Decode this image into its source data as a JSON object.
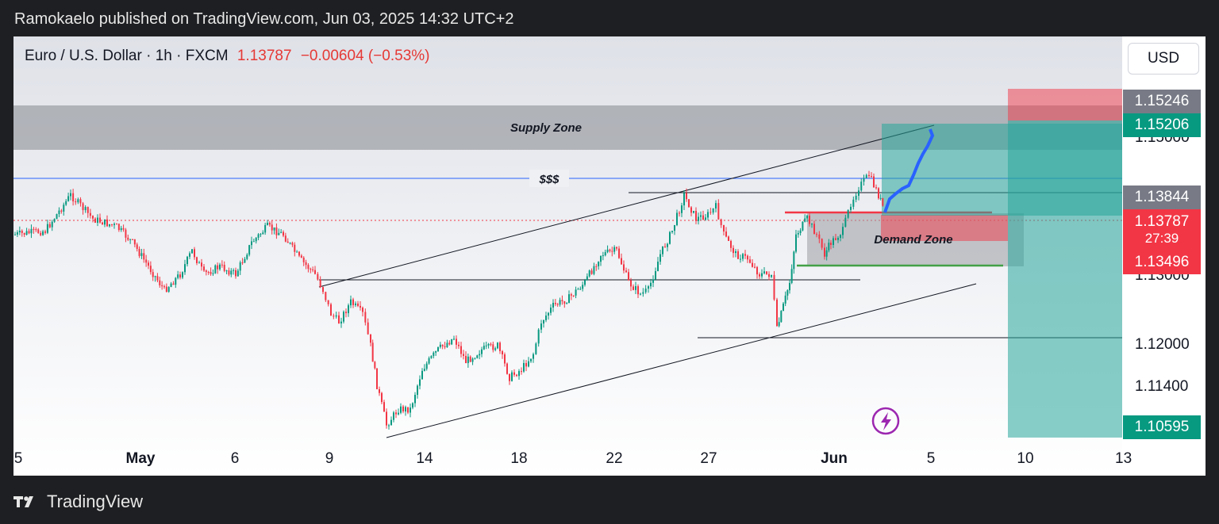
{
  "header": {
    "publish_line": "Ramokaelo published on TradingView.com, Jun 03, 2025 14:32 UTC+2"
  },
  "legend": {
    "symbol": "Euro / U.S. Dollar · 1h · FXCM",
    "price": "1.13787",
    "change": "−0.00604 (−0.53%)"
  },
  "currency_button": "USD",
  "annotations": {
    "supply_zone": "Supply Zone",
    "demand_zone": "Demand Zone",
    "liquidity": "$$$"
  },
  "price_axis": {
    "ticks": [
      "1.15000",
      "1.13000",
      "1.12000",
      "1.11400"
    ],
    "tags": [
      {
        "label": "1.15246",
        "color": "#787b86"
      },
      {
        "label": "1.15206",
        "color": "#089981"
      },
      {
        "label": "1.13844",
        "color": "#787b86"
      },
      {
        "label": "1.13787",
        "color": "#f23645"
      },
      {
        "label": "27:39",
        "color": "#f23645"
      },
      {
        "label": "1.13496",
        "color": "#f23645"
      },
      {
        "label": "1.10595",
        "color": "#089981"
      }
    ]
  },
  "time_axis": {
    "labels": [
      "5",
      "May",
      "6",
      "9",
      "14",
      "18",
      "22",
      "27",
      "Jun",
      "5",
      "10",
      "13"
    ],
    "bold": [
      "May",
      "Jun"
    ]
  },
  "footer": {
    "brand": "TradingView"
  },
  "colors": {
    "up": "#089981",
    "down": "#f23645",
    "projection": "#2962ff",
    "supply": "#9a9ca3",
    "target_zone": "#26a69a",
    "stop_zone": "#f23645"
  },
  "icons": [
    "lightning-icon",
    "tradingview-logo-icon"
  ]
}
